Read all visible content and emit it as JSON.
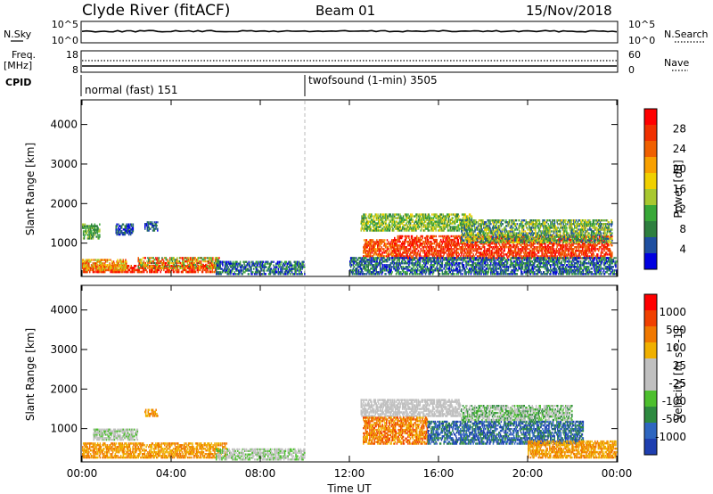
{
  "header": {
    "station": "Clyde River (fitACF)",
    "beam": "Beam 01",
    "date": "15/Nov/2018"
  },
  "strips": {
    "nsky_label": "N.Sky",
    "nsky_top": "10^5",
    "nsky_bottom": "10^0",
    "nsearch_label": "N.Search",
    "nsearch_top": "10^5",
    "nsearch_bottom": "10^0",
    "freq_label": "Freq.",
    "freq_unit": "[MHz]",
    "freq_top": "18",
    "freq_bottom": "8",
    "nave_label": "Nave",
    "nave_top": "60",
    "nave_bottom": "0",
    "cpid_label": "CPID",
    "modes": [
      {
        "text": "normal (fast) 151",
        "start_hour": 0
      },
      {
        "text": "twofsound (1-min) 3505",
        "start_hour": 10
      }
    ]
  },
  "chart_data": [
    {
      "type": "heatmap",
      "name": "power",
      "xlabel": "Time UT",
      "ylabel": "Slant Range [km]",
      "colorbar_label": "Power [dB]",
      "colorbar_ticks": [
        "28",
        "24",
        "20",
        "16",
        "12",
        "8",
        "4"
      ],
      "colors": [
        "#0000e0",
        "#1f4fa0",
        "#2e7f3f",
        "#38a838",
        "#a8c830",
        "#f0d000",
        "#f8a000",
        "#f06000",
        "#f03000",
        "#ff0000"
      ],
      "x_ticks": [
        "00:00",
        "04:00",
        "08:00",
        "12:00",
        "16:00",
        "20:00",
        "00:00"
      ],
      "xlim_hours": [
        0,
        24
      ],
      "ylim_km": [
        180,
        4600
      ],
      "y_ticks": [
        1000,
        2000,
        3000,
        4000
      ],
      "regions": [
        {
          "t": [
            0.0,
            6.0
          ],
          "r": [
            250,
            450
          ],
          "c": [
            7,
            9
          ]
        },
        {
          "t": [
            0.0,
            2.0
          ],
          "r": [
            300,
            600
          ],
          "c": [
            4,
            8
          ]
        },
        {
          "t": [
            0.0,
            0.8
          ],
          "r": [
            1100,
            1500
          ],
          "c": [
            2,
            4
          ]
        },
        {
          "t": [
            1.5,
            2.3
          ],
          "r": [
            1200,
            1500
          ],
          "c": [
            0,
            2
          ]
        },
        {
          "t": [
            2.8,
            3.4
          ],
          "r": [
            1300,
            1550
          ],
          "c": [
            0,
            2
          ]
        },
        {
          "t": [
            2.5,
            6.2
          ],
          "r": [
            350,
            650
          ],
          "c": [
            2,
            9
          ]
        },
        {
          "t": [
            6.0,
            10.0
          ],
          "r": [
            200,
            550
          ],
          "c": [
            0,
            3
          ]
        },
        {
          "t": [
            12.6,
            14.2
          ],
          "r": [
            650,
            1100
          ],
          "c": [
            6,
            9
          ]
        },
        {
          "t": [
            12.5,
            17.5
          ],
          "r": [
            1300,
            1750
          ],
          "c": [
            2,
            5
          ]
        },
        {
          "t": [
            14.0,
            23.8
          ],
          "r": [
            600,
            1200
          ],
          "c": [
            7,
            9
          ]
        },
        {
          "t": [
            17.0,
            23.8
          ],
          "r": [
            1000,
            1600
          ],
          "c": [
            1,
            5
          ]
        },
        {
          "t": [
            12.0,
            24.0
          ],
          "r": [
            200,
            650
          ],
          "c": [
            0,
            3
          ]
        }
      ]
    },
    {
      "type": "heatmap",
      "name": "velocity",
      "xlabel": "Time UT",
      "ylabel": "Slant Range [km]",
      "colorbar_label": "Velocity [m s^-1]",
      "colorbar_ticks": [
        "1000",
        "500",
        "100",
        "25",
        "-25",
        "-100",
        "-500",
        "-1000"
      ],
      "colors": [
        "#1e3fb0",
        "#2e66c0",
        "#2e8a40",
        "#4dbf2e",
        "#c0c0c0",
        "#c0c0c0",
        "#f0b000",
        "#f07800",
        "#f04000",
        "#ff0000"
      ],
      "x_ticks": [
        "00:00",
        "04:00",
        "08:00",
        "12:00",
        "16:00",
        "20:00",
        "00:00"
      ],
      "xlim_hours": [
        0,
        24
      ],
      "ylim_km": [
        180,
        4600
      ],
      "y_ticks": [
        1000,
        2000,
        3000,
        4000
      ],
      "regions": [
        {
          "t": [
            0.0,
            6.5
          ],
          "r": [
            250,
            650
          ],
          "c": [
            6,
            7
          ]
        },
        {
          "t": [
            0.5,
            2.5
          ],
          "r": [
            700,
            1000
          ],
          "c": [
            3,
            5
          ]
        },
        {
          "t": [
            2.8,
            3.4
          ],
          "r": [
            1300,
            1500
          ],
          "c": [
            6,
            7
          ]
        },
        {
          "t": [
            6.0,
            10.0
          ],
          "r": [
            200,
            500
          ],
          "c": [
            3,
            5
          ]
        },
        {
          "t": [
            12.5,
            17.0
          ],
          "r": [
            1300,
            1750
          ],
          "c": [
            4,
            5
          ]
        },
        {
          "t": [
            12.6,
            15.5
          ],
          "r": [
            600,
            1300
          ],
          "c": [
            6,
            8
          ]
        },
        {
          "t": [
            15.5,
            22.5
          ],
          "r": [
            600,
            1200
          ],
          "c": [
            0,
            2
          ]
        },
        {
          "t": [
            17.0,
            22.0
          ],
          "r": [
            1200,
            1600
          ],
          "c": [
            2,
            5
          ]
        },
        {
          "t": [
            20.0,
            24.0
          ],
          "r": [
            250,
            700
          ],
          "c": [
            6,
            7
          ]
        }
      ]
    }
  ]
}
